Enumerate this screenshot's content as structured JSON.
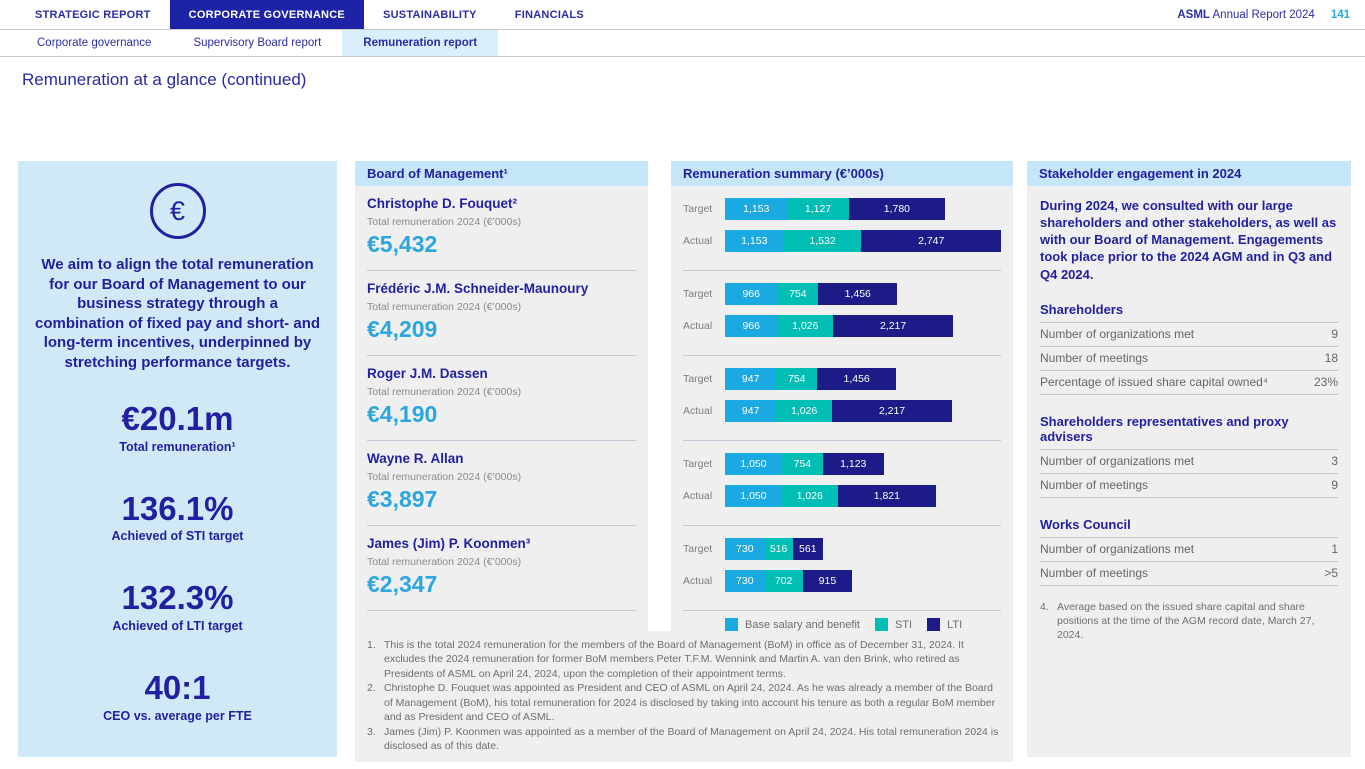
{
  "header": {
    "report_brand": "ASML",
    "report_title": "Annual Report 2024",
    "page_number": "141"
  },
  "top_nav": {
    "tabs": [
      {
        "label": "STRATEGIC REPORT",
        "active": false
      },
      {
        "label": "CORPORATE GOVERNANCE",
        "active": true
      },
      {
        "label": "SUSTAINABILITY",
        "active": false
      },
      {
        "label": "FINANCIALS",
        "active": false
      }
    ]
  },
  "sub_nav": {
    "items": [
      {
        "label": "Corporate governance",
        "active": false
      },
      {
        "label": "Supervisory Board report",
        "active": false
      },
      {
        "label": "Remuneration report",
        "active": true
      }
    ]
  },
  "page_title": "Remuneration at a glance (continued)",
  "highlight_panel": {
    "icon": "euro-icon",
    "euro_symbol": "€",
    "statement": "We aim to align the total remuneration for our Board of Management to our business strategy through a combination of fixed pay and short- and long-term incentives, underpinned by stretching performance targets.",
    "stats": [
      {
        "value": "€20.1m",
        "label": "Total remuneration¹"
      },
      {
        "value": "136.1%",
        "label": "Achieved of STI target"
      },
      {
        "value": "132.3%",
        "label": "Achieved of LTI target"
      },
      {
        "value": "40:1",
        "label": "CEO vs. average per FTE"
      }
    ]
  },
  "board_section": {
    "left_header": "Board of Management¹",
    "right_header": "Remuneration summary (€’000s)",
    "total_label": "Total remuneration 2024 (€’000s)",
    "row_labels": {
      "target": "Target",
      "actual": "Actual"
    },
    "legend": [
      {
        "label": "Base salary and benefit",
        "color": "#1ba9e1"
      },
      {
        "label": "STI",
        "color": "#00beb4"
      },
      {
        "label": "LTI",
        "color": "#1c1b87"
      }
    ],
    "footnotes": [
      {
        "num": "1.",
        "text": "This is the total 2024 remuneration for the members of the Board of Management (BoM) in office as of December 31, 2024. It excludes the 2024 remuneration for former BoM members Peter T.F.M. Wennink and Martin A. van den Brink, who retired as Presidents of ASML on April 24, 2024, upon the completion of their appointment terms."
      },
      {
        "num": "2.",
        "text": "Christophe D. Fouquet was appointed as President and CEO of ASML on April 24, 2024. As he was already a member of the Board of Management (BoM), his total remuneration for 2024 is disclosed by taking into account his tenure as both a regular BoM member and as President and CEO of ASML."
      },
      {
        "num": "3.",
        "text": "James (Jim) P. Koonmen was appointed as a member of the Board of Management on April 24, 2024. His total remuneration 2024 is disclosed as of this date."
      }
    ]
  },
  "chart_data": {
    "type": "bar",
    "subtype": "horizontal-stacked",
    "title": "Remuneration summary (€’000s)",
    "series_names": [
      "Base salary and benefit",
      "STI",
      "LTI"
    ],
    "series_colors": [
      "#1ba9e1",
      "#00beb4",
      "#1c1b87"
    ],
    "xlim": [
      0,
      5432
    ],
    "executives": [
      {
        "name": "Christophe D. Fouquet²",
        "total_display": "€5,432",
        "target": [
          1153,
          1127,
          1780
        ],
        "actual": [
          1153,
          1532,
          2747
        ]
      },
      {
        "name": "Frédéric J.M. Schneider-Maunoury",
        "total_display": "€4,209",
        "target": [
          966,
          754,
          1456
        ],
        "actual": [
          966,
          1026,
          2217
        ]
      },
      {
        "name": "Roger J.M. Dassen",
        "total_display": "€4,190",
        "target": [
          947,
          754,
          1456
        ],
        "actual": [
          947,
          1026,
          2217
        ]
      },
      {
        "name": "Wayne R. Allan",
        "total_display": "€3,897",
        "target": [
          1050,
          754,
          1123
        ],
        "actual": [
          1050,
          1026,
          1821
        ]
      },
      {
        "name": "James (Jim) P. Koonmen³",
        "total_display": "€2,347",
        "target": [
          730,
          516,
          561
        ],
        "actual": [
          730,
          702,
          915
        ]
      }
    ]
  },
  "stakeholder_panel": {
    "title": "Stakeholder engagement in 2024",
    "intro": "During 2024, we consulted with our large shareholders and other stakeholders, as well as with our Board of Management. Engagements took place prior to the 2024 AGM and in Q3 and Q4 2024.",
    "sections": [
      {
        "title": "Shareholders",
        "rows": [
          {
            "label": "Number of organizations met",
            "value": "9"
          },
          {
            "label": "Number of meetings",
            "value": "18"
          },
          {
            "label": "Percentage of issued share capital owned⁴",
            "value": "23%"
          }
        ]
      },
      {
        "title": "Shareholders representatives and proxy advisers",
        "rows": [
          {
            "label": "Number of organizations met",
            "value": "3"
          },
          {
            "label": "Number of meetings",
            "value": "9"
          }
        ]
      },
      {
        "title": "Works Council",
        "rows": [
          {
            "label": "Number of organizations met",
            "value": "1"
          },
          {
            "label": "Number of meetings",
            "value": ">5"
          }
        ]
      }
    ],
    "footnote": {
      "num": "4.",
      "text": "Average based on the issued share capital and share positions at the time of the AGM record date, March 27, 2024."
    }
  }
}
